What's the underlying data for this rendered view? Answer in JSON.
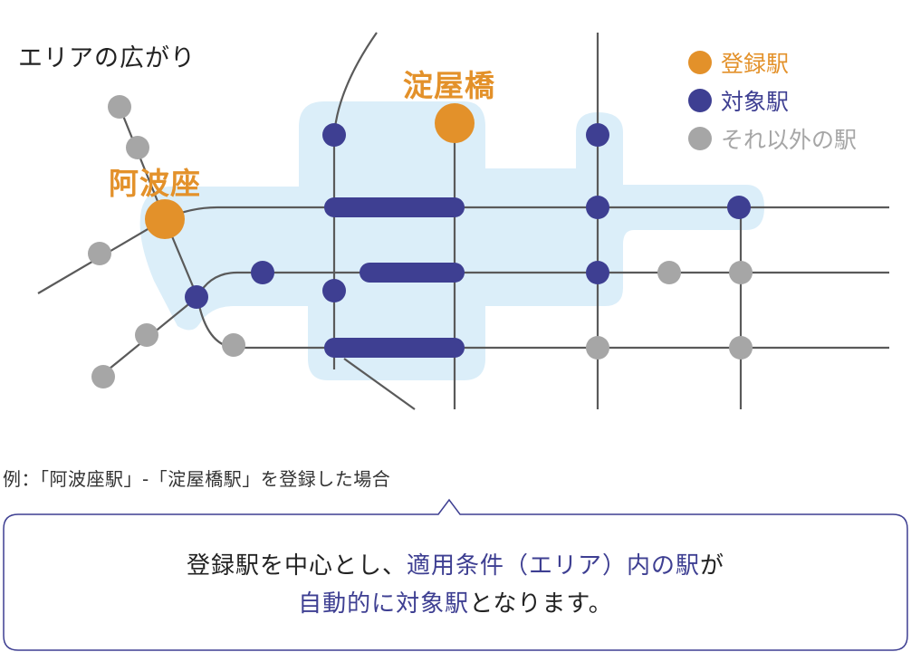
{
  "title": "エリアの広がり",
  "legend": [
    {
      "label": "登録駅",
      "color": "#e3912a"
    },
    {
      "label": "対象駅",
      "color": "#3e3f92"
    },
    {
      "label": "それ以外の駅",
      "color": "#a6a6a6"
    }
  ],
  "stations": {
    "awaza": "阿波座",
    "yodoyabashi": "淀屋橋"
  },
  "colors": {
    "registered": "#e3912a",
    "target": "#3e3f92",
    "other": "#a6a6a6",
    "area": "#dbeef9",
    "line": "#5a5a5a",
    "callout_border": "#3e3f92"
  },
  "example": "例：「阿波座駅」-「淀屋橋駅」を登録した場合",
  "callout": {
    "line1_a": "登録駅を中心とし、",
    "line1_b": "適用条件（エリア）内の駅",
    "line1_c": "が",
    "line2_a": "自動的に対象駅",
    "line2_b": "となります。"
  }
}
